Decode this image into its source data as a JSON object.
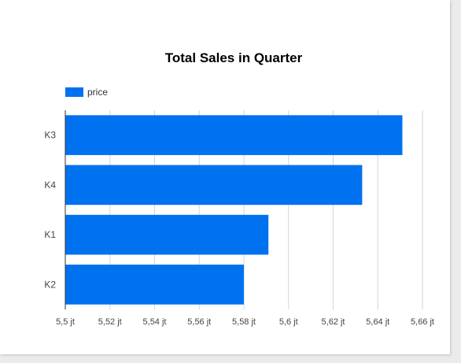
{
  "chart_data": {
    "type": "bar",
    "orientation": "horizontal",
    "title": "Total Sales in Quarter",
    "xlabel": "",
    "ylabel": "",
    "categories": [
      "K3",
      "K4",
      "K1",
      "K2"
    ],
    "series": [
      {
        "name": "price",
        "color": "#0072f0",
        "values": [
          5651000,
          5633000,
          5591000,
          5580000
        ]
      }
    ],
    "xlim": [
      5500000,
      5660000
    ],
    "x_ticks": [
      {
        "value": 5500000,
        "label": "5,5 jt"
      },
      {
        "value": 5520000,
        "label": "5,52 jt"
      },
      {
        "value": 5540000,
        "label": "5,54 jt"
      },
      {
        "value": 5560000,
        "label": "5,56 jt"
      },
      {
        "value": 5580000,
        "label": "5,58 jt"
      },
      {
        "value": 5600000,
        "label": "5,6 jt"
      },
      {
        "value": 5620000,
        "label": "5,62 jt"
      },
      {
        "value": 5640000,
        "label": "5,64 jt"
      },
      {
        "value": 5660000,
        "label": "5,66 jt"
      }
    ],
    "grid": true,
    "legend_position": "top-left"
  }
}
